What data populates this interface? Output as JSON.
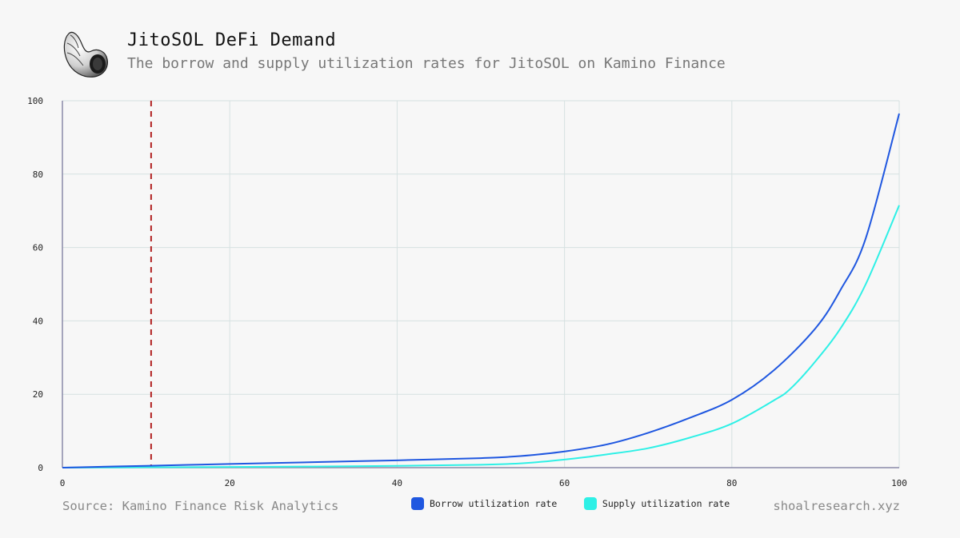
{
  "header": {
    "title": "JitoSOL DeFi Demand",
    "subtitle": "The borrow and supply utilization rates for JitoSOL on Kamino Finance",
    "logo_icon": "shell-icon"
  },
  "footer": {
    "source": "Source: Kamino Finance Risk Analytics",
    "site": "shoalresearch.xyz"
  },
  "chart_data": {
    "type": "line",
    "title": "JitoSOL DeFi Demand",
    "subtitle": "The borrow and supply utilization rates for JitoSOL on Kamino Finance",
    "xlabel": "",
    "ylabel": "",
    "xlim": [
      0,
      100
    ],
    "ylim": [
      0,
      100
    ],
    "xticks": [
      "0",
      "20",
      "40",
      "60",
      "80",
      "100"
    ],
    "yticks": [
      "0",
      "20",
      "40",
      "60",
      "80",
      "100"
    ],
    "grid": true,
    "legend_position": "bottom-center",
    "reference_line": {
      "x": 10.6,
      "style": "dashed",
      "color": "#b22222"
    },
    "series": [
      {
        "name": "Borrow utilization rate",
        "color": "#1f57e0",
        "x": [
          0,
          10,
          20,
          30,
          40,
          50,
          53,
          56,
          60,
          65,
          70,
          75,
          80,
          85,
          90,
          93,
          96,
          100
        ],
        "y": [
          0,
          0.5,
          1.0,
          1.5,
          2.0,
          2.6,
          2.9,
          3.4,
          4.4,
          6.3,
          9.5,
          13.6,
          18.5,
          26.5,
          38,
          48.5,
          62.5,
          96.5
        ]
      },
      {
        "name": "Supply utilization rate",
        "color": "#2ef0e6",
        "x": [
          0,
          10,
          20,
          30,
          40,
          50,
          55,
          60,
          65,
          70,
          75,
          80,
          85,
          87,
          90,
          93,
          96,
          100
        ],
        "y": [
          0,
          0.1,
          0.2,
          0.3,
          0.5,
          0.8,
          1.2,
          2.2,
          3.6,
          5.3,
          8.2,
          12.0,
          18.3,
          21.5,
          29,
          38,
          50,
          71.5
        ]
      }
    ]
  }
}
